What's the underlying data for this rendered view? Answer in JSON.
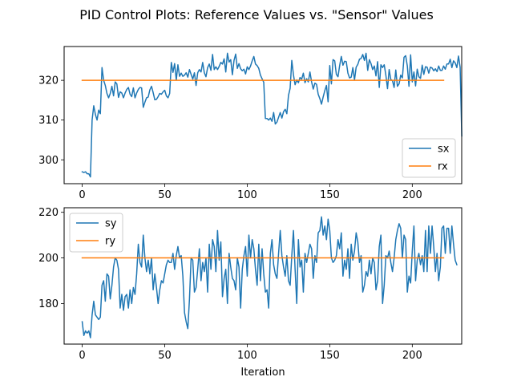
{
  "chart_data": {
    "type": "line",
    "title": "PID Control Plots: Reference Values vs. \"Sensor\" Values",
    "xlabel": "Iteration",
    "colors": {
      "blue": "#1f77b4",
      "orange": "#ff7f0e"
    },
    "subplots": [
      {
        "id": "top",
        "xlim": [
          -10.95,
          229.95
        ],
        "ylim": [
          294.0,
          328.5
        ],
        "xticks": [
          0,
          50,
          100,
          150,
          200
        ],
        "yticks": [
          300,
          310,
          320
        ],
        "legend_position": "lower-right",
        "series": [
          {
            "name": "sx",
            "color": "#1f77b4",
            "values": [
              297.0,
              296.8,
              297.0,
              296.5,
              296.5,
              295.7,
              310.0,
              313.6,
              311.4,
              310.0,
              312.5,
              311.6,
              323.2,
              320.0,
              318.7,
              316.7,
              315.6,
              316.7,
              318.5,
              316.1,
              319.6,
              319.1,
              315.7,
              317.1,
              316.8,
              315.6,
              316.8,
              317.7,
              318.2,
              316.5,
              315.9,
              318.1,
              315.6,
              316.8,
              317.7,
              318.2,
              318.1,
              313.2,
              314.5,
              315.6,
              315.8,
              317.6,
              318.5,
              316.9,
              315.1,
              315.2,
              315.9,
              316.7,
              316.5,
              317.1,
              317.5,
              316.1,
              315.6,
              316.7,
              324.5,
              322.0,
              324.2,
              320.1,
              323.9,
              321.0,
              321.8,
              321.0,
              321.3,
              321.9,
              320.8,
              322.7,
              321.5,
              320.3,
              321.9,
              318.7,
              321.9,
              322.7,
              322.1,
              324.5,
              321.9,
              320.9,
              323.2,
              324.1,
              322.5,
              326.5,
              322.7,
              323.4,
              322.7,
              323.5,
              324.5,
              324.1,
              325.4,
              322.1,
              326.8,
              324.6,
              325.2,
              321.4,
              325.0,
              326.6,
              323.0,
              324.2,
              322.9,
              322.4,
              322.8,
              321.6,
              323.4,
              322.7,
              323.6,
              324.9,
              326.0,
              324.1,
              323.7,
              323.0,
              321.3,
              320.4,
              319.5,
              310.4,
              310.4,
              310.0,
              310.5,
              309.7,
              311.9,
              309.0,
              309.5,
              310.7,
              311.9,
              310.5,
              312.1,
              312.7,
              311.6,
              316.2,
              318.0,
              325.0,
              321.4,
              318.9,
              320.1,
              319.4,
              320.7,
              320.3,
              321.8,
              319.4,
              320.4,
              319.6,
              322.1,
              319.6,
              317.8,
              319.3,
              319.0,
              316.5,
              315.4,
              314.0,
              315.8,
              317.4,
              318.7,
              314.6,
              323.7,
              319.1,
              325.2,
              324.9,
              321.5,
              320.9,
              323.7,
              326.0,
              323.8,
              324.8,
              324.7,
              321.8,
              320.6,
              320.8,
              323.2,
              320.1,
              323.3,
              324.0,
              325.3,
              325.5,
              326.5,
              325.0,
              326.8,
              322.5,
              325.2,
              324.2,
              322.7,
              323.6,
              321.1,
              324.7,
              318.2,
              323.9,
              323.2,
              323.9,
              321.3,
              317.9,
              322.7,
              320.2,
              319.9,
              318.2,
              322.6,
              318.5,
              319.1,
              321.3,
              320.6,
              325.8,
              326.2,
              323.6,
              318.5,
              326.4,
              319.6,
              322.1,
              318.6,
              322.8,
              320.9,
              320.5,
              323.8,
              321.5,
              323.4,
              323.3,
              321.8,
              323.3,
              323.1,
              322.4,
              322.9,
              322.2,
              323.6,
              322.5,
              322.5,
              323.6,
              322.8,
              324.1,
              324.1,
              325.3,
              323.2,
              324.9,
              324.4,
              323.2,
              326.1,
              323.3,
              306.0
            ]
          },
          {
            "name": "rx",
            "color": "#ff7f0e",
            "x_range": [
              0,
              219
            ],
            "constant": 320
          }
        ]
      },
      {
        "id": "bottom",
        "xlim": [
          -10.95,
          229.95
        ],
        "ylim": [
          162.2,
          222.0
        ],
        "xticks": [
          0,
          50,
          100,
          150,
          200
        ],
        "yticks": [
          180,
          200,
          220
        ],
        "legend_position": "upper-left",
        "series": [
          {
            "name": "sy",
            "color": "#1f77b4",
            "values": [
              172.0,
              166.0,
              168.0,
              167.0,
              168.0,
              165.0,
              175.0,
              181.0,
              175.0,
              174.0,
              173.0,
              174.0,
              188.0,
              190.0,
              181.0,
              193.0,
              192.0,
              182.0,
              188.0,
              196.0,
              200.0,
              199.0,
              195.0,
              178.0,
              184.0,
              177.0,
              183.0,
              184.0,
              178.0,
              186.0,
              180.0,
              187.0,
              184.0,
              193.0,
              206.0,
              198.0,
              196.0,
              210.0,
              200.0,
              194.0,
              199.0,
              193.0,
              200.0,
              186.0,
              193.0,
              187.0,
              180.0,
              186.0,
              190.0,
              189.0,
              193.0,
              197.0,
              199.0,
              198.0,
              198.0,
              202.0,
              195.0,
              201.0,
              205.0,
              200.0,
              201.0,
              192.0,
              176.0,
              172.0,
              169.0,
              182.0,
              200.0,
              199.0,
              185.0,
              187.0,
              195.0,
              204.0,
              190.0,
              198.0,
              194.0,
              200.0,
              185.0,
              206.0,
              195.0,
              208.0,
              205.0,
              194.0,
              212.0,
              199.0,
              207.0,
              183.0,
              191.0,
              195.0,
              180.0,
              202.0,
              196.0,
              191.0,
              190.0,
              186.0,
              200.0,
              196.0,
              178.0,
              195.0,
              201.0,
              205.0,
              192.0,
              210.0,
              200.0,
              208.0,
              204.0,
              195.0,
              188.0,
              206.0,
              190.0,
              204.0,
              193.0,
              185.0,
              186.0,
              178.0,
              202.0,
              208.0,
              197.0,
              193.0,
              191.0,
              202.0,
              212.0,
              201.0,
              196.0,
              192.0,
              201.0,
              190.0,
              188.0,
              201.0,
              212.0,
              195.0,
              180.0,
              208.0,
              196.0,
              199.0,
              185.0,
              202.0,
              198.0,
              202.0,
              206.0,
              204.0,
              191.0,
              201.0,
              198.0,
              211.0,
              212.0,
              218.0,
              210.0,
              214.0,
              208.0,
              217.0,
              212.0,
              200.0,
              198.0,
              199.0,
              201.0,
              208.0,
              204.0,
              211.0,
              192.0,
              199.0,
              195.0,
              204.0,
              191.0,
              206.0,
              199.0,
              203.0,
              211.0,
              207.0,
              198.0,
              201.0,
              185.0,
              188.0,
              194.0,
              192.0,
              199.0,
              193.0,
              200.0,
              198.0,
              186.0,
              190.0,
              205.0,
              210.0,
              180.0,
              188.0,
              201.0,
              200.0,
              203.0,
              198.0,
              194.0,
              200.0,
              208.0,
              212.0,
              215.0,
              213.0,
              200.0,
              210.0,
              208.0,
              185.0,
              192.0,
              189.0,
              203.0,
              214.0,
              190.0,
              199.0,
              202.0,
              197.0,
              201.0,
              194.0,
              212.0,
              194.0,
              214.0,
              202.0,
              214.0,
              205.0,
              194.0,
              202.0,
              190.0,
              196.0,
              213.0,
              214.0,
              202.0,
              213.0,
              213.0,
              202.0,
              214.0,
              206.0,
              199.0,
              197.0
            ]
          },
          {
            "name": "ry",
            "color": "#ff7f0e",
            "x_range": [
              0,
              219
            ],
            "constant": 200
          }
        ]
      }
    ]
  }
}
